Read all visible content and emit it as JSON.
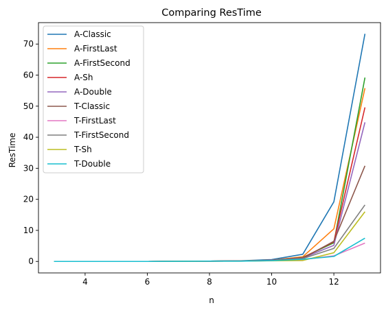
{
  "chart_data": {
    "type": "line",
    "title": "Comparing ResTime",
    "xlabel": "n",
    "ylabel": "ResTime",
    "x": [
      3,
      4,
      5,
      6,
      7,
      8,
      9,
      10,
      11,
      12,
      13
    ],
    "xlim": [
      2.5,
      13.5
    ],
    "ylim": [
      -3.7,
      76.9
    ],
    "xticks": [
      4,
      6,
      8,
      10,
      12
    ],
    "yticks": [
      0,
      10,
      20,
      30,
      40,
      50,
      60,
      70
    ],
    "grid": false,
    "legend_position": "top-left",
    "series": [
      {
        "name": "A-Classic",
        "color": "#1f77b4",
        "values": [
          0,
          0,
          0,
          0,
          0.05,
          0.1,
          0.2,
          0.6,
          2.3,
          19.2,
          73.3
        ]
      },
      {
        "name": "A-FirstLast",
        "color": "#ff7f0e",
        "values": [
          0,
          0,
          0,
          0,
          0.05,
          0.1,
          0.15,
          0.4,
          1.5,
          10.5,
          55.8
        ]
      },
      {
        "name": "A-FirstSecond",
        "color": "#2ca02c",
        "values": [
          0,
          0,
          0,
          0,
          0.05,
          0.1,
          0.15,
          0.4,
          1.3,
          6.0,
          59.2
        ]
      },
      {
        "name": "A-Sh",
        "color": "#d62728",
        "values": [
          0,
          0,
          0,
          0,
          0.05,
          0.1,
          0.15,
          0.4,
          1.2,
          6.3,
          49.6
        ]
      },
      {
        "name": "A-Double",
        "color": "#9467bd",
        "values": [
          0,
          0,
          0,
          0,
          0.05,
          0.1,
          0.15,
          0.4,
          1.1,
          5.2,
          44.8
        ]
      },
      {
        "name": "T-Classic",
        "color": "#8c564b",
        "values": [
          0,
          0,
          0,
          0,
          0.05,
          0.1,
          0.15,
          0.35,
          1.0,
          6.5,
          30.8
        ]
      },
      {
        "name": "T-FirstLast",
        "color": "#e377c2",
        "values": [
          0,
          0,
          0,
          0,
          0.05,
          0.1,
          0.1,
          0.25,
          0.6,
          1.8,
          5.9
        ]
      },
      {
        "name": "T-FirstSecond",
        "color": "#7f7f7f",
        "values": [
          0,
          0,
          0,
          0,
          0.05,
          0.1,
          0.15,
          0.3,
          0.9,
          4.2,
          18.2
        ]
      },
      {
        "name": "T-Sh",
        "color": "#bcbd22",
        "values": [
          0,
          0,
          0,
          0,
          0.05,
          0.1,
          0.1,
          0.2,
          0.3,
          2.8,
          16.0
        ]
      },
      {
        "name": "T-Double",
        "color": "#17becf",
        "values": [
          0,
          0,
          0,
          0,
          0.05,
          0.1,
          0.1,
          0.25,
          0.7,
          1.6,
          7.5
        ]
      }
    ]
  }
}
